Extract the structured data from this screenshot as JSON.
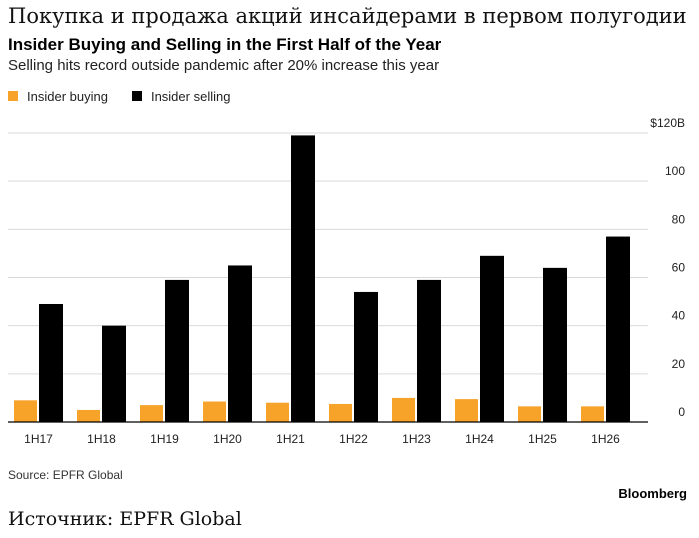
{
  "header": {
    "title_ru": "Покупка и продажа акций инсайдерами в первом полугодии",
    "title": "Insider Buying and Selling in the First Half of the Year",
    "subtitle": "Selling hits record outside pandemic after 20% increase this year"
  },
  "legend": {
    "buying": "Insider buying",
    "selling": "Insider selling"
  },
  "colors": {
    "buying": "#f7a228",
    "selling": "#000000",
    "grid": "#d9d9d9",
    "axis": "#000000"
  },
  "chart_data": {
    "type": "bar",
    "categories": [
      "1H17",
      "1H18",
      "1H19",
      "1H20",
      "1H21",
      "1H22",
      "1H23",
      "1H24",
      "1H25",
      "1H26"
    ],
    "series": [
      {
        "name": "Insider buying",
        "values": [
          9,
          5,
          7,
          8.5,
          8,
          7.5,
          10,
          9.5,
          6.5,
          6.5
        ]
      },
      {
        "name": "Insider selling",
        "values": [
          49,
          40,
          59,
          65,
          119,
          54,
          59,
          69,
          64,
          77
        ]
      }
    ],
    "y_ticks": [
      "$120B",
      "100",
      "80",
      "60",
      "40",
      "20",
      "0"
    ],
    "y_tick_values": [
      120,
      100,
      80,
      60,
      40,
      20,
      0
    ],
    "ylim": [
      0,
      120
    ],
    "y_axis_position": "right",
    "grid": true,
    "legend_position": "top-left"
  },
  "footer": {
    "source": "Source: EPFR Global",
    "brand": "Bloomberg",
    "source_ru": "Источник: EPFR Global"
  }
}
